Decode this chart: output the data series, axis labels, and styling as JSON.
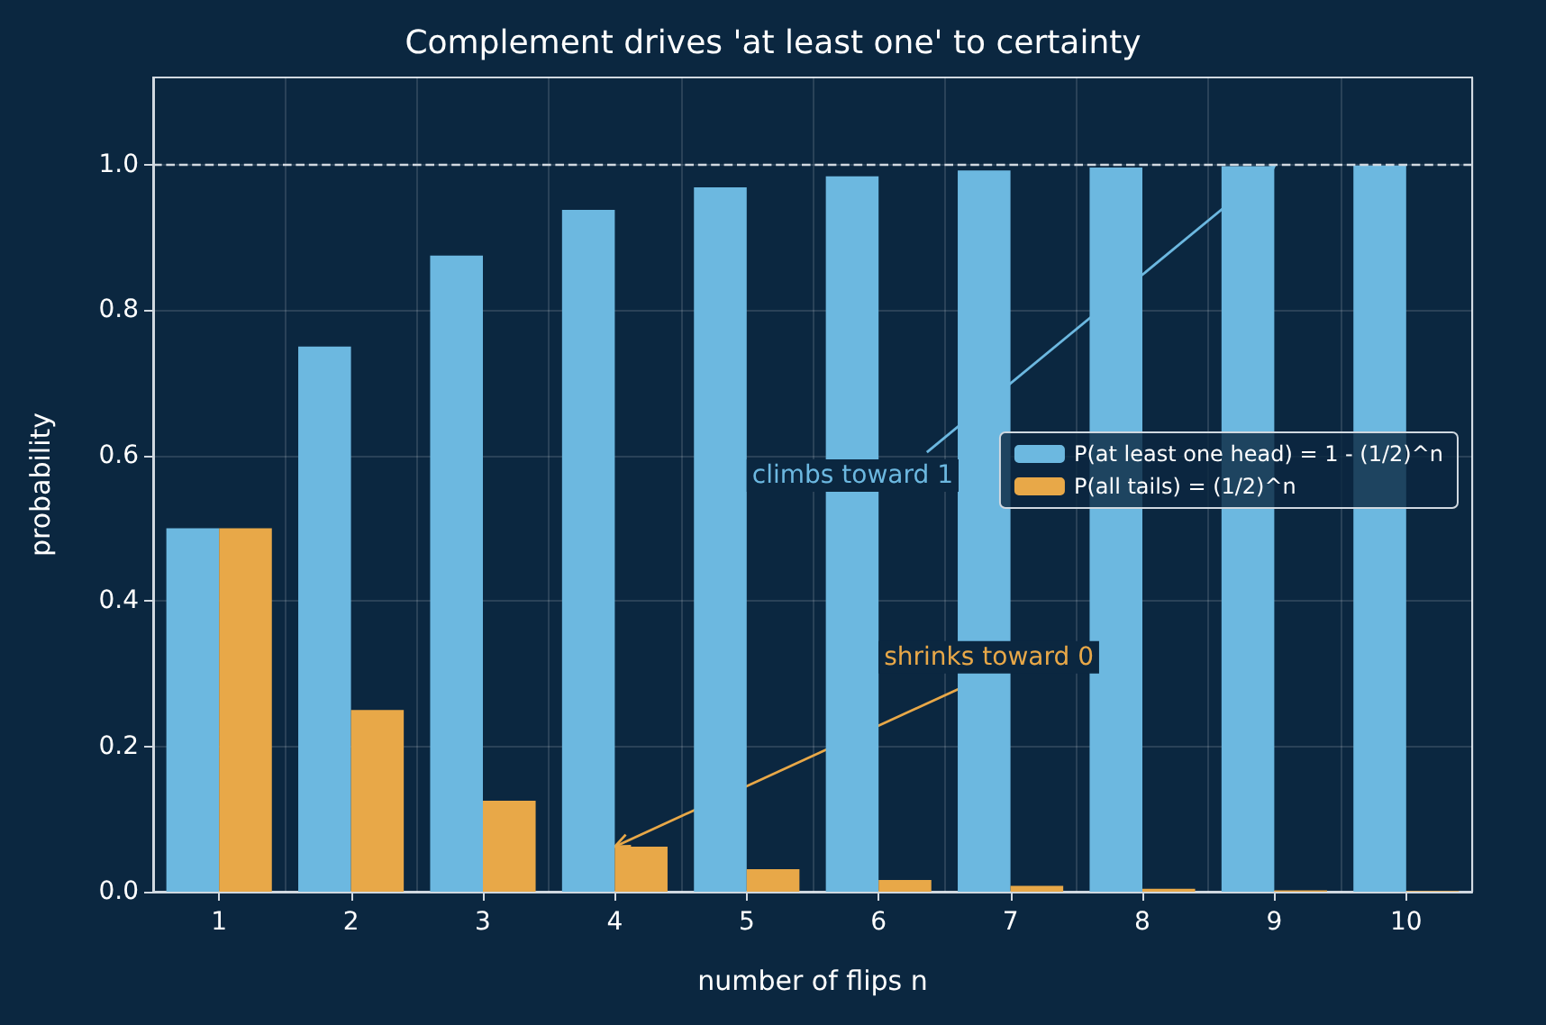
{
  "chart_data": {
    "type": "bar",
    "title": "Complement drives 'at least one' to certainty",
    "xlabel": "number of flips n",
    "ylabel": "probability",
    "categories": [
      "1",
      "2",
      "3",
      "4",
      "5",
      "6",
      "7",
      "8",
      "9",
      "10"
    ],
    "series": [
      {
        "name": "P(at least one head) = 1 - (1/2)^n",
        "color": "#6cb8e0",
        "values": [
          0.5,
          0.75,
          0.875,
          0.938,
          0.969,
          0.984,
          0.992,
          0.996,
          0.998,
          0.999
        ]
      },
      {
        "name": "P(all tails) = (1/2)^n",
        "color": "#e8a848",
        "values": [
          0.5,
          0.25,
          0.125,
          0.062,
          0.031,
          0.016,
          0.008,
          0.004,
          0.002,
          0.001
        ]
      }
    ],
    "ylim": [
      0,
      1.12
    ],
    "yticks": [
      {
        "value": 0,
        "label": "0.0"
      },
      {
        "value": 0.2,
        "label": "0.2"
      },
      {
        "value": 0.4,
        "label": "0.4"
      },
      {
        "value": 0.6,
        "label": "0.6"
      },
      {
        "value": 0.8,
        "label": "0.8"
      },
      {
        "value": 1,
        "label": "1.0"
      }
    ],
    "ref_lines": [
      {
        "axis": "y",
        "value": 1,
        "line_style": "dashed",
        "color": "#d0d8e0"
      }
    ],
    "annotations": [
      {
        "text": "climbs toward 1",
        "x": "9",
        "y": 0.998
      },
      {
        "text": "shrinks toward 0",
        "x": "4",
        "y": 0.062
      }
    ],
    "grid": true,
    "legend": "right"
  }
}
